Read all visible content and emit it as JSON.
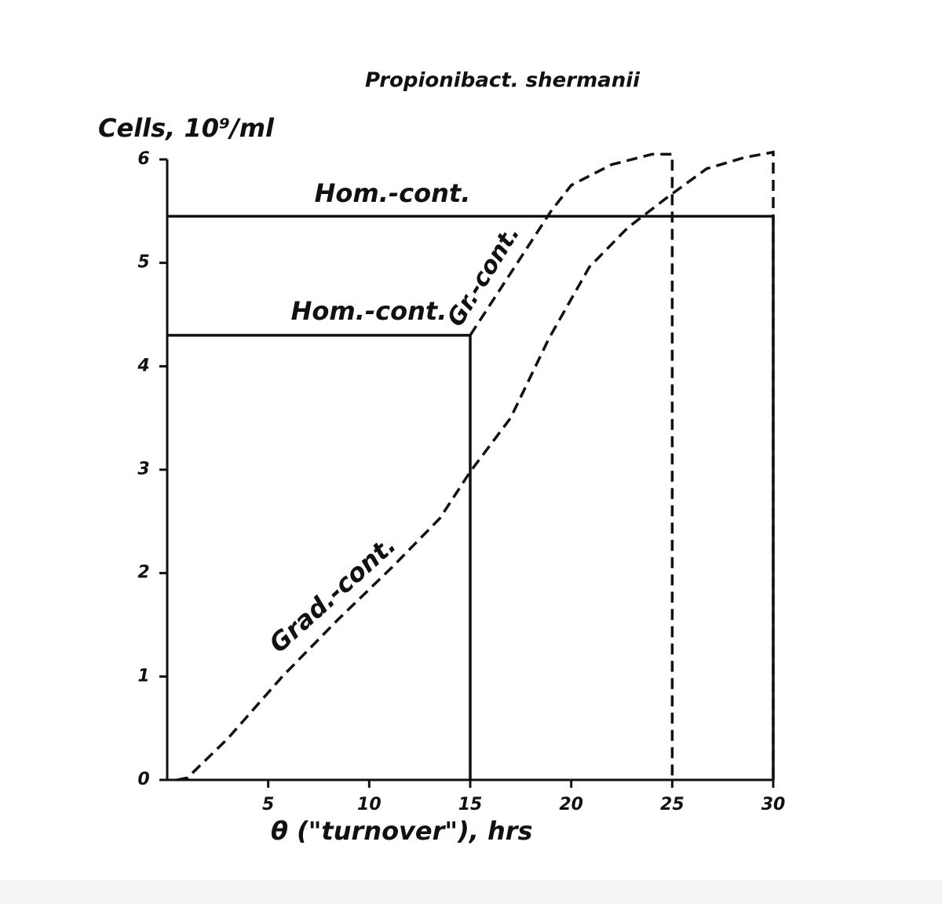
{
  "chart_data": {
    "type": "line",
    "title": "Propionibact. shermanii",
    "y_label": "Cells, 10⁹/ml",
    "x_label": "θ (\"turnover\"), hrs",
    "xlim": [
      0,
      30
    ],
    "ylim": [
      0,
      6
    ],
    "xticks": [
      5,
      10,
      15,
      20,
      25,
      30
    ],
    "yticks": [
      0,
      1,
      2,
      3,
      4,
      5,
      6
    ],
    "series": [
      {
        "name": "Hom.-cont.",
        "color": "#111111",
        "dashed": false,
        "x": [
          0,
          30,
          30
        ],
        "values": [
          5.45,
          5.45,
          0
        ]
      },
      {
        "name": "Hom.-cont.",
        "color": "#111111",
        "dashed": false,
        "x": [
          0,
          15,
          15
        ],
        "values": [
          4.3,
          4.3,
          0
        ]
      },
      {
        "name": "Gr.-cont.",
        "color": "#111111",
        "dashed": true,
        "x": [
          15,
          17,
          19,
          20,
          22,
          24,
          25,
          25
        ],
        "values": [
          4.3,
          4.9,
          5.5,
          5.75,
          5.95,
          6.05,
          6.05,
          0
        ]
      },
      {
        "name": "Grad.-cont.",
        "color": "#111111",
        "dashed": true,
        "x": [
          0.5,
          1,
          3,
          5.7,
          8.4,
          11.2,
          13.5,
          15,
          17,
          18.9,
          20.9,
          22.8,
          24.8,
          26.7,
          28.6,
          30,
          30
        ],
        "values": [
          0,
          0.02,
          0.4,
          1.0,
          1.54,
          2.07,
          2.53,
          2.98,
          3.5,
          4.27,
          4.96,
          5.34,
          5.64,
          5.91,
          6.02,
          6.07,
          0
        ]
      }
    ]
  }
}
